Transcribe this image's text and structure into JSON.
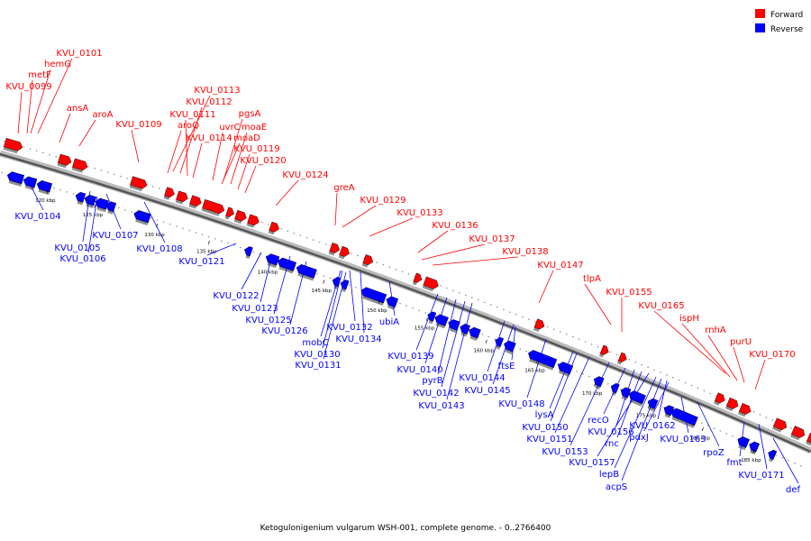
{
  "caption": "Ketogulonigenium vulgarum WSH-001, complete genome. - 0..2766400",
  "legend": {
    "forward": {
      "label": "Forward",
      "color": "#ff0000"
    },
    "reverse": {
      "label": "Reverse",
      "color": "#0000ff"
    }
  },
  "ticks": [
    "120 kbp",
    "125 kbp",
    "130 kbp",
    "135 kbp",
    "140 kbp",
    "145 kbp",
    "150 kbp",
    "155 kbp",
    "160 kbp",
    "165 kbp",
    "170 kbp",
    "175 kbp",
    "180 kbp",
    "185 kbp"
  ],
  "forward_labels": [
    "KVU_0101",
    "hemG",
    "metF",
    "KVU_0099",
    "ansA",
    "aroA",
    "KVU_0109",
    "KVU_0113",
    "KVU_0112",
    "KVU_0111",
    "aroQ",
    "KVU_0114",
    "pgsA",
    "uvrC",
    "moaE",
    "moaD",
    "KVU_0119",
    "KVU_0120",
    "KVU_0124",
    "greA",
    "KVU_0129",
    "KVU_0133",
    "KVU_0136",
    "KVU_0137",
    "KVU_0138",
    "KVU_0147",
    "tlpA",
    "KVU_0155",
    "KVU_0165",
    "ispH",
    "rnhA",
    "purU",
    "KVU_0170"
  ],
  "reverse_labels": [
    "KVU_0104",
    "KVU_0105",
    "KVU_0107",
    "KVU_0106",
    "KVU_0108",
    "KVU_0121",
    "KVU_0122",
    "KVU_0123",
    "KVU_0125",
    "KVU_0126",
    "mobC",
    "KVU_0132",
    "KVU_0130",
    "KVU_0134",
    "KVU_0131",
    "ubiA",
    "KVU_0139",
    "KVU_0140",
    "pyrB",
    "KVU_0142",
    "KVU_0143",
    "KVU_0144",
    "KVU_0145",
    "ftsE",
    "KVU_0148",
    "lysA",
    "KVU_0150",
    "KVU_0151",
    "KVU_0153",
    "recO",
    "KVU_0156",
    "rnc",
    "KVU_0157",
    "lepB",
    "acpS",
    "KVU_0162",
    "pdxJ",
    "KVU_0163",
    "rpoZ",
    "fmt",
    "KVU_0171",
    "def"
  ]
}
